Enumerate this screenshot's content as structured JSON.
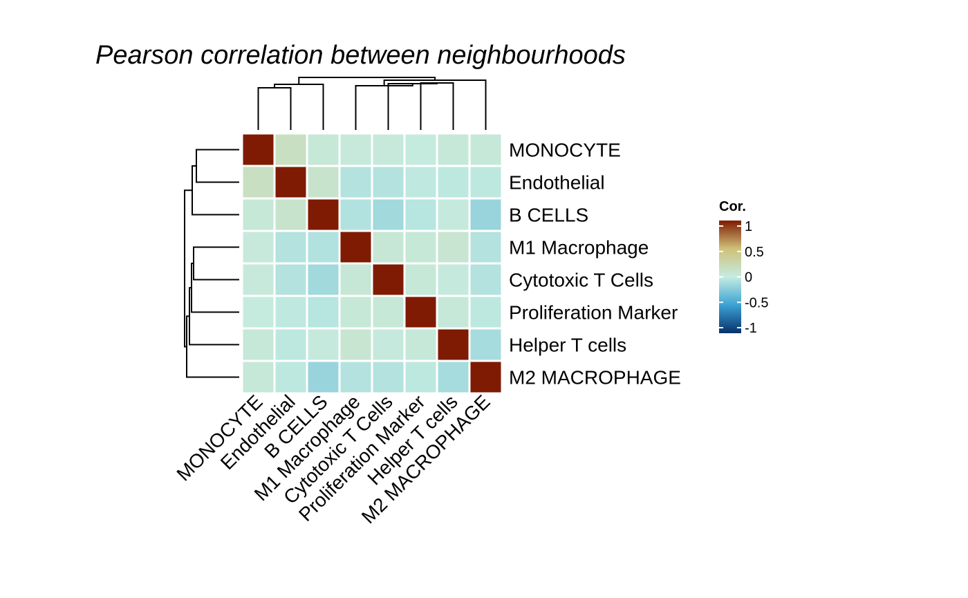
{
  "chart_data": {
    "type": "heatmap",
    "title": "Pearson correlation between neighbourhoods",
    "rows": [
      "MONOCYTE",
      "Endothelial",
      "B CELLS",
      "M1 Macrophage",
      "Cytotoxic T Cells",
      "Proliferation Marker",
      "Helper T cells",
      "M2 MACROPHAGE"
    ],
    "columns": [
      "MONOCYTE",
      "Endothelial",
      "B CELLS",
      "M1 Macrophage",
      "Cytotoxic T Cells",
      "Proliferation Marker",
      "Helper T cells",
      "M2 MACROPHAGE"
    ],
    "values": [
      [
        1.0,
        0.15,
        0.05,
        0.03,
        0.03,
        0.01,
        0.04,
        0.04
      ],
      [
        0.15,
        1.0,
        0.1,
        -0.06,
        -0.06,
        -0.02,
        -0.03,
        -0.03
      ],
      [
        0.05,
        0.1,
        1.0,
        -0.07,
        -0.13,
        -0.05,
        0.02,
        -0.16
      ],
      [
        0.03,
        -0.06,
        -0.07,
        1.0,
        0.06,
        0.05,
        0.08,
        -0.06
      ],
      [
        0.03,
        -0.06,
        -0.13,
        0.06,
        1.0,
        0.05,
        0.02,
        -0.06
      ],
      [
        0.01,
        -0.02,
        -0.05,
        0.05,
        0.05,
        1.0,
        0.04,
        -0.03
      ],
      [
        0.04,
        -0.03,
        0.02,
        0.08,
        0.02,
        0.04,
        1.0,
        -0.11
      ],
      [
        0.04,
        -0.03,
        -0.16,
        -0.06,
        -0.06,
        -0.03,
        -0.11,
        1.0
      ]
    ],
    "legend": {
      "title": "Cor.",
      "ticks": [
        {
          "value": 1,
          "label": "1"
        },
        {
          "value": 0.5,
          "label": "0.5"
        },
        {
          "value": 0,
          "label": "0"
        },
        {
          "value": -0.5,
          "label": "-0.5"
        },
        {
          "value": -1,
          "label": "-1"
        }
      ],
      "range": [
        -1,
        1
      ],
      "colors": {
        "-1": "#08306b",
        "-0.5": "#3ba2d3",
        "0": "#c5ece1",
        "0.5": "#cfc07a",
        "1": "#7f1b02"
      }
    },
    "grid_color": "#ffffff"
  }
}
